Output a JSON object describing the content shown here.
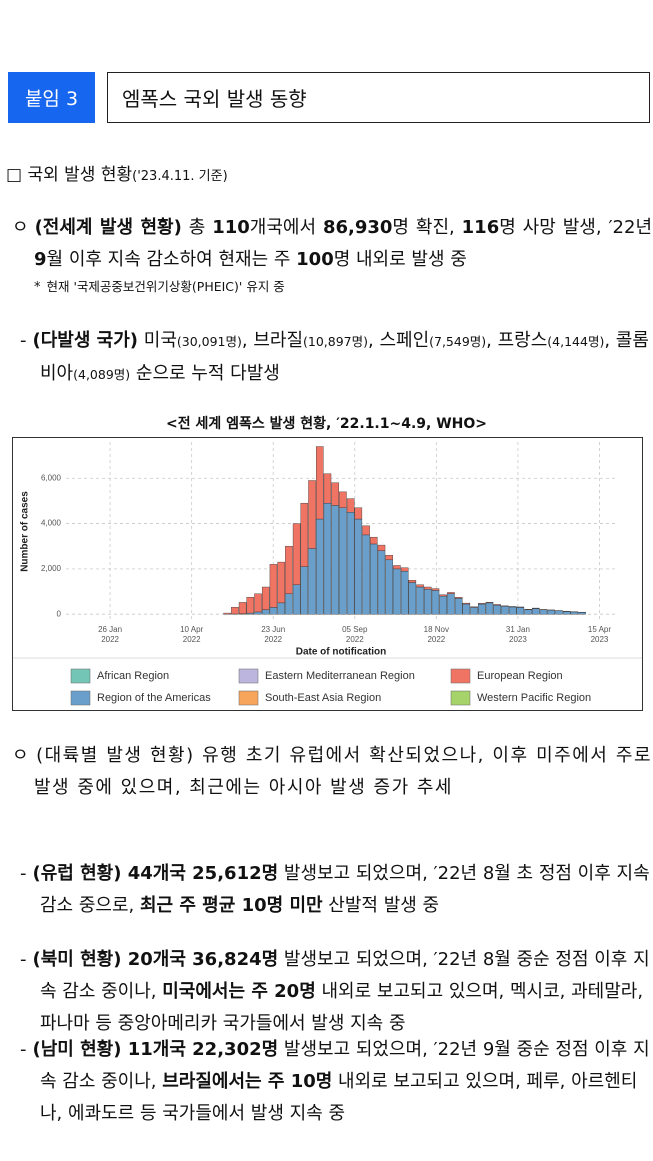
{
  "header": {
    "badge": "붙임 3",
    "title": "엠폭스 국외 발생 동향"
  },
  "section": {
    "marker": "□",
    "title": "국외 발생 현황",
    "date": "('23.4.11. 기준)"
  },
  "paragraphs": [
    {
      "level": 1,
      "marker": "ㅇ",
      "segments": [
        {
          "text": "(전세계 발생 현황)",
          "bold": true
        },
        {
          "text": " 총 "
        },
        {
          "text": "110",
          "bold": true
        },
        {
          "text": "개국에서 "
        },
        {
          "text": "86,930",
          "bold": true
        },
        {
          "text": "명 확진, "
        },
        {
          "text": "116",
          "bold": true
        },
        {
          "text": "명 사망 발생, ′22년 "
        },
        {
          "text": "9",
          "bold": true
        },
        {
          "text": "월 이후 지속 감소하여 현재는 주 "
        },
        {
          "text": "100",
          "bold": true
        },
        {
          "text": "명 내외로 발생 중"
        }
      ]
    },
    {
      "level": 3,
      "marker": "*",
      "segments": [
        {
          "text": "현재 '국제공중보건위기상황(PHEIC)' 유지 중",
          "small": true
        }
      ]
    },
    {
      "level": 2,
      "marker": "-",
      "segments": [
        {
          "text": "(다발생 국가)",
          "bold": true
        },
        {
          "text": " 미국"
        },
        {
          "text": "(30,091명)",
          "small": true
        },
        {
          "text": ", 브라질"
        },
        {
          "text": "(10,897명)",
          "small": true
        },
        {
          "text": ", 스페인"
        },
        {
          "text": "(7,549명)",
          "small": true
        },
        {
          "text": ", 프랑스"
        },
        {
          "text": "(4,144명)",
          "small": true
        },
        {
          "text": ", 콜롬비아"
        },
        {
          "text": "(4,089명)",
          "small": true
        },
        {
          "text": " 순으로 누적 다발생"
        }
      ]
    },
    {
      "level": 1,
      "marker": "ㅇ",
      "segments": [
        {
          "text": "(대륙별 발생 현황) 유행 초기 유럽에서 확산되었으나, 이후 미주에서 주로 발생 중에 있으며, 최근에는 아시아 발생 증가 추세"
        }
      ]
    },
    {
      "level": 2,
      "marker": "-",
      "segments": [
        {
          "text": "(유럽 현황) 44개국 25,612명",
          "bold": true
        },
        {
          "text": " 발생보고 되었으며, ′22년 8월 초 정점 이후 지속 감소 중으로, "
        },
        {
          "text": "최근 주 평균 10명 미만",
          "bold": true
        },
        {
          "text": " 산발적 발생 중"
        }
      ]
    },
    {
      "level": 2,
      "marker": "-",
      "segments": [
        {
          "text": "(북미 현황) 20개국 36,824명",
          "bold": true
        },
        {
          "text": " 발생보고 되었으며, ′22년 8월 중순 정점 이후 지속 감소 중이나, "
        },
        {
          "text": "미국에서는 주 20명",
          "bold": true
        },
        {
          "text": " 내외로 보고되고 있으며, 멕시코, 과테말라, 파나마 등 중앙아메리카 국가들에서 발생 지속 중"
        }
      ]
    },
    {
      "level": 2,
      "marker": "-",
      "segments": [
        {
          "text": "(남미 현황) 11개국 22,302명",
          "bold": true
        },
        {
          "text": " 발생보고 되었으며, ′22년 9월 중순 정점 이후 지속 감소 중이나, "
        },
        {
          "text": "브라질에서는 주 10명",
          "bold": true
        },
        {
          "text": " 내외로 보고되고 있으며, 페루, 아르헨티나, 에콰도르 등 국가들에서 발생 지속 중"
        }
      ]
    }
  ],
  "chart_data": {
    "type": "bar",
    "stacked": true,
    "title": "<전 세계 엠폭스 발생 현황, ′22.1.1~4.9, WHO>",
    "y_label": "Number of cases",
    "x_label": "Date of notification",
    "x": [
      "2022-05-09",
      "2022-05-16",
      "2022-05-23",
      "2022-05-30",
      "2022-06-06",
      "2022-06-13",
      "2022-06-20",
      "2022-06-27",
      "2022-07-04",
      "2022-07-11",
      "2022-07-18",
      "2022-07-25",
      "2022-08-01",
      "2022-08-08",
      "2022-08-15",
      "2022-08-22",
      "2022-08-29",
      "2022-09-05",
      "2022-09-12",
      "2022-09-19",
      "2022-09-26",
      "2022-10-03",
      "2022-10-10",
      "2022-10-17",
      "2022-10-24",
      "2022-10-31",
      "2022-11-07",
      "2022-11-14",
      "2022-11-21",
      "2022-11-28",
      "2022-12-05",
      "2022-12-12",
      "2022-12-19",
      "2022-12-26",
      "2023-01-02",
      "2023-01-09",
      "2023-01-16",
      "2023-01-23",
      "2023-01-30",
      "2023-02-06",
      "2023-02-13",
      "2023-02-20",
      "2023-02-27",
      "2023-03-06",
      "2023-03-13",
      "2023-03-20",
      "2023-03-27"
    ],
    "bar_days": 7,
    "series": [
      {
        "name": "African Region",
        "color": "#73c6b6",
        "values": [
          0,
          0,
          0,
          0,
          0,
          0,
          0,
          0,
          0,
          0,
          0,
          0,
          0,
          0,
          0,
          0,
          0,
          0,
          0,
          0,
          0,
          0,
          0,
          0,
          0,
          0,
          0,
          0,
          0,
          0,
          0,
          0,
          0,
          0,
          0,
          0,
          0,
          0,
          0,
          0,
          0,
          0,
          0,
          0,
          0,
          0,
          0
        ]
      },
      {
        "name": "Region of the Americas",
        "color": "#6b9fcb",
        "values": [
          0,
          10,
          20,
          50,
          100,
          200,
          300,
          500,
          900,
          1300,
          2100,
          2900,
          4200,
          4900,
          4800,
          4700,
          4500,
          4200,
          3500,
          3100,
          2800,
          2400,
          2000,
          1900,
          1400,
          1200,
          1100,
          1050,
          800,
          900,
          700,
          450,
          300,
          450,
          500,
          400,
          350,
          320,
          300,
          200,
          250,
          200,
          180,
          150,
          120,
          100,
          80
        ]
      },
      {
        "name": "Eastern Mediterranean Region",
        "color": "#bcb6de",
        "values": [
          0,
          0,
          0,
          0,
          0,
          0,
          0,
          0,
          0,
          0,
          0,
          0,
          0,
          0,
          0,
          0,
          0,
          0,
          0,
          0,
          0,
          0,
          0,
          0,
          0,
          0,
          0,
          0,
          0,
          0,
          0,
          0,
          0,
          0,
          0,
          0,
          0,
          0,
          0,
          0,
          0,
          0,
          0,
          0,
          0,
          0,
          0
        ]
      },
      {
        "name": "South-East Asia Region",
        "color": "#f6a55a",
        "values": [
          0,
          0,
          0,
          0,
          0,
          0,
          0,
          0,
          0,
          0,
          0,
          0,
          0,
          0,
          0,
          0,
          0,
          0,
          0,
          0,
          0,
          0,
          0,
          0,
          0,
          0,
          0,
          0,
          0,
          0,
          0,
          0,
          0,
          0,
          0,
          0,
          0,
          0,
          0,
          0,
          0,
          0,
          0,
          0,
          0,
          0,
          0
        ]
      },
      {
        "name": "European Region",
        "color": "#f07464",
        "values": [
          50,
          300,
          500,
          700,
          800,
          1000,
          1900,
          1800,
          2100,
          2700,
          2800,
          3000,
          3200,
          1300,
          1000,
          700,
          600,
          500,
          400,
          300,
          250,
          200,
          150,
          150,
          100,
          100,
          100,
          80,
          60,
          60,
          50,
          40,
          30,
          30,
          30,
          30,
          20,
          20,
          20,
          20,
          20,
          10,
          10,
          10,
          10,
          10,
          10
        ]
      },
      {
        "name": "Western Pacific Region",
        "color": "#a7d46a",
        "values": [
          0,
          0,
          0,
          0,
          0,
          0,
          0,
          0,
          0,
          0,
          0,
          0,
          0,
          0,
          0,
          0,
          0,
          0,
          0,
          0,
          0,
          0,
          0,
          0,
          0,
          0,
          0,
          0,
          0,
          0,
          0,
          0,
          0,
          0,
          0,
          0,
          0,
          0,
          0,
          0,
          0,
          0,
          0,
          0,
          0,
          0,
          0
        ]
      }
    ],
    "xlim": [
      "2021-12-17",
      "2023-04-30"
    ],
    "xticks": [
      {
        "value": "2022-01-26",
        "label": [
          "26 Jan",
          "2022"
        ]
      },
      {
        "value": "2022-04-10",
        "label": [
          "10 Apr",
          "2022"
        ]
      },
      {
        "value": "2022-06-23",
        "label": [
          "23 Jun",
          "2022"
        ]
      },
      {
        "value": "2022-09-05",
        "label": [
          "05 Sep",
          "2022"
        ]
      },
      {
        "value": "2022-11-18",
        "label": [
          "18 Nov",
          "2022"
        ]
      },
      {
        "value": "2023-01-31",
        "label": [
          "31 Jan",
          "2023"
        ]
      },
      {
        "value": "2023-04-15",
        "label": [
          "15 Apr",
          "2023"
        ]
      }
    ],
    "ylim": [
      -300,
      7600
    ],
    "yticks": [
      0,
      {
        "value": 2000,
        "label": "2,000"
      },
      {
        "value": 4000,
        "label": "4,000"
      },
      {
        "value": 6000,
        "label": "6,000"
      }
    ],
    "grid": true,
    "legend": "bottom"
  }
}
